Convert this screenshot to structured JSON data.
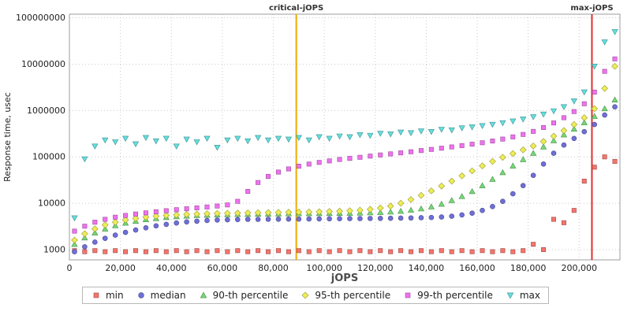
{
  "chart_data": {
    "type": "scatter",
    "title": "",
    "xlabel": "jOPS",
    "ylabel": "Response time, usec",
    "y_scale": "log",
    "xlim": [
      0,
      216000
    ],
    "ylim": [
      600,
      120000000
    ],
    "x_ticks": [
      0,
      20000,
      40000,
      60000,
      80000,
      100000,
      120000,
      140000,
      160000,
      180000,
      200000
    ],
    "y_ticks": [
      1000,
      10000,
      100000,
      1000000,
      10000000,
      100000000
    ],
    "grid": "dotted",
    "legend_position": "bottom",
    "vlines": [
      {
        "x": 89000,
        "color": "#eeaa00",
        "label": "critical-jOPS"
      },
      {
        "x": 205000,
        "color": "#e03030",
        "label": "max-jOPS"
      }
    ],
    "x": [
      2000,
      6000,
      10000,
      14000,
      18000,
      22000,
      26000,
      30000,
      34000,
      38000,
      42000,
      46000,
      50000,
      54000,
      58000,
      62000,
      66000,
      70000,
      74000,
      78000,
      82000,
      86000,
      90000,
      94000,
      98000,
      102000,
      106000,
      110000,
      114000,
      118000,
      122000,
      126000,
      130000,
      134000,
      138000,
      142000,
      146000,
      150000,
      154000,
      158000,
      162000,
      166000,
      170000,
      174000,
      178000,
      182000,
      186000,
      190000,
      194000,
      198000,
      202000,
      206000,
      210000,
      214000
    ],
    "series": [
      {
        "name": "min",
        "marker": "square",
        "color": "#f4746c",
        "values": [
          950,
          900,
          950,
          900,
          950,
          900,
          950,
          900,
          950,
          900,
          950,
          900,
          950,
          900,
          950,
          900,
          950,
          900,
          950,
          900,
          950,
          900,
          950,
          900,
          950,
          900,
          950,
          900,
          950,
          900,
          950,
          900,
          950,
          900,
          950,
          900,
          950,
          900,
          950,
          900,
          950,
          900,
          950,
          900,
          950,
          1300,
          1000,
          4500,
          3800,
          7000,
          30000,
          60000,
          100000,
          80000
        ]
      },
      {
        "name": "median",
        "marker": "circle",
        "color": "#6f6fd8",
        "values": [
          900,
          1150,
          1450,
          1750,
          2050,
          2350,
          2650,
          2950,
          3250,
          3500,
          3750,
          3950,
          4100,
          4250,
          4350,
          4400,
          4450,
          4500,
          4500,
          4520,
          4540,
          4550,
          4560,
          4580,
          4600,
          4620,
          4640,
          4660,
          4680,
          4700,
          4720,
          4740,
          4780,
          4820,
          4870,
          4930,
          5050,
          5250,
          5600,
          6100,
          7000,
          8500,
          11000,
          16000,
          24000,
          40000,
          70000,
          120000,
          180000,
          250000,
          350000,
          500000,
          800000,
          1200000
        ]
      },
      {
        "name": "90-th percentile",
        "marker": "triangle-up",
        "color": "#74d874",
        "values": [
          1300,
          1800,
          2300,
          2800,
          3300,
          3750,
          4100,
          4450,
          4700,
          4950,
          5150,
          5300,
          5450,
          5550,
          5650,
          5700,
          5750,
          5800,
          5850,
          5880,
          5900,
          5950,
          5980,
          6000,
          6020,
          6050,
          6080,
          6120,
          6180,
          6250,
          6350,
          6500,
          6750,
          7100,
          7600,
          8400,
          9600,
          11500,
          14000,
          18000,
          24000,
          33000,
          46000,
          64000,
          88000,
          120000,
          165000,
          225000,
          300000,
          400000,
          550000,
          750000,
          1100000,
          1700000
        ]
      },
      {
        "name": "95-th percentile",
        "marker": "diamond",
        "color": "#eded55",
        "values": [
          1600,
          2200,
          2800,
          3400,
          3900,
          4350,
          4700,
          5000,
          5250,
          5450,
          5600,
          5750,
          5850,
          5950,
          6050,
          6100,
          6150,
          6200,
          6250,
          6300,
          6350,
          6400,
          6450,
          6500,
          6550,
          6650,
          6750,
          6900,
          7100,
          7400,
          7900,
          8700,
          10000,
          12000,
          14800,
          18500,
          23500,
          30000,
          39000,
          50000,
          64000,
          80000,
          98000,
          118000,
          142000,
          172000,
          215000,
          280000,
          370000,
          500000,
          700000,
          1100000,
          3000000,
          9000000
        ]
      },
      {
        "name": "99-th percentile",
        "marker": "square",
        "color": "#ef72ef",
        "values": [
          2500,
          3200,
          3900,
          4500,
          5000,
          5450,
          5850,
          6200,
          6550,
          6900,
          7250,
          7600,
          7950,
          8300,
          8700,
          9200,
          11000,
          18000,
          28000,
          38000,
          47000,
          55000,
          63000,
          70000,
          76000,
          82000,
          88000,
          93000,
          98000,
          104000,
          110000,
          116000,
          122000,
          129000,
          137000,
          145000,
          154000,
          164000,
          175000,
          188000,
          202000,
          220000,
          242000,
          270000,
          305000,
          355000,
          430000,
          540000,
          700000,
          950000,
          1400000,
          2500000,
          7000000,
          13000000
        ]
      },
      {
        "name": "max",
        "marker": "triangle-down",
        "color": "#63dede",
        "values": [
          4800,
          90000,
          170000,
          230000,
          210000,
          250000,
          190000,
          260000,
          220000,
          250000,
          170000,
          240000,
          210000,
          250000,
          160000,
          230000,
          250000,
          220000,
          260000,
          230000,
          250000,
          240000,
          260000,
          230000,
          270000,
          250000,
          280000,
          270000,
          300000,
          290000,
          320000,
          310000,
          340000,
          330000,
          360000,
          350000,
          390000,
          380000,
          420000,
          440000,
          470000,
          500000,
          540000,
          590000,
          650000,
          730000,
          830000,
          980000,
          1200000,
          1600000,
          2500000,
          9000000,
          30000000,
          50000000
        ]
      }
    ]
  }
}
